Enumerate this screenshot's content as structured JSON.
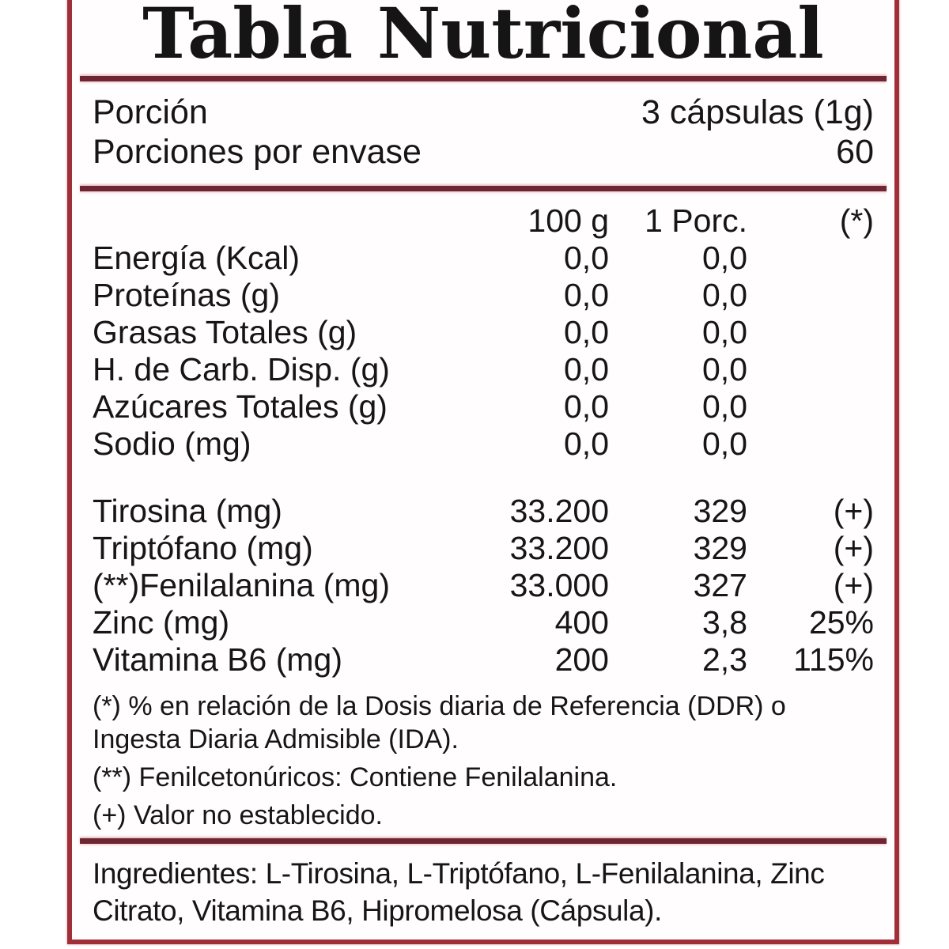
{
  "label": {
    "title": "Tabla Nutricional",
    "serving": {
      "label": "Porción",
      "value": "3 cápsulas (1g)"
    },
    "servings_per_container": {
      "label": "Porciones por envase",
      "value": "60"
    },
    "columns": {
      "name": "",
      "per100": "100 g",
      "per_serving": "1 Porc.",
      "pct": "(*)"
    },
    "basic_rows": [
      {
        "name": "Energía (Kcal)",
        "per100": "0,0",
        "per_serving": "0,0",
        "pct": ""
      },
      {
        "name": "Proteínas (g)",
        "per100": "0,0",
        "per_serving": "0,0",
        "pct": ""
      },
      {
        "name": "Grasas Totales (g)",
        "per100": "0,0",
        "per_serving": "0,0",
        "pct": ""
      },
      {
        "name": "H. de Carb. Disp. (g)",
        "per100": "0,0",
        "per_serving": "0,0",
        "pct": ""
      },
      {
        "name": "Azúcares Totales (g)",
        "per100": "0,0",
        "per_serving": "0,0",
        "pct": ""
      },
      {
        "name": "Sodio (mg)",
        "per100": "0,0",
        "per_serving": "0,0",
        "pct": ""
      }
    ],
    "active_rows": [
      {
        "name": "Tirosina (mg)",
        "per100": "33.200",
        "per_serving": "329",
        "pct": "(+)"
      },
      {
        "name": "Triptófano (mg)",
        "per100": "33.200",
        "per_serving": "329",
        "pct": "(+)"
      },
      {
        "name": "(**)Fenilalanina (mg)",
        "per100": "33.000",
        "per_serving": "327",
        "pct": "(+)"
      },
      {
        "name": "Zinc (mg)",
        "per100": "400",
        "per_serving": "3,8",
        "pct": "25%"
      },
      {
        "name": "Vitamina B6 (mg)",
        "per100": "200",
        "per_serving": "2,3",
        "pct": "115%"
      }
    ],
    "footnotes": [
      "(*) % en relación de la Dosis diaria de Referencia (DDR) o Ingesta Diaria Admisible (IDA).",
      "(**) Fenilcetonúricos: Contiene Fenilalanina.",
      "(+) Valor no establecido."
    ],
    "ingredients": "Ingredientes: L-Tirosina, L-Triptófano, L-Fenilalanina, Zinc Citrato, Vitamina B6, Hipromelosa (Cápsula)."
  },
  "colors": {
    "border": "#a12f38",
    "rule": "#6e2633",
    "text": "#161616",
    "background": "#ffffff"
  }
}
